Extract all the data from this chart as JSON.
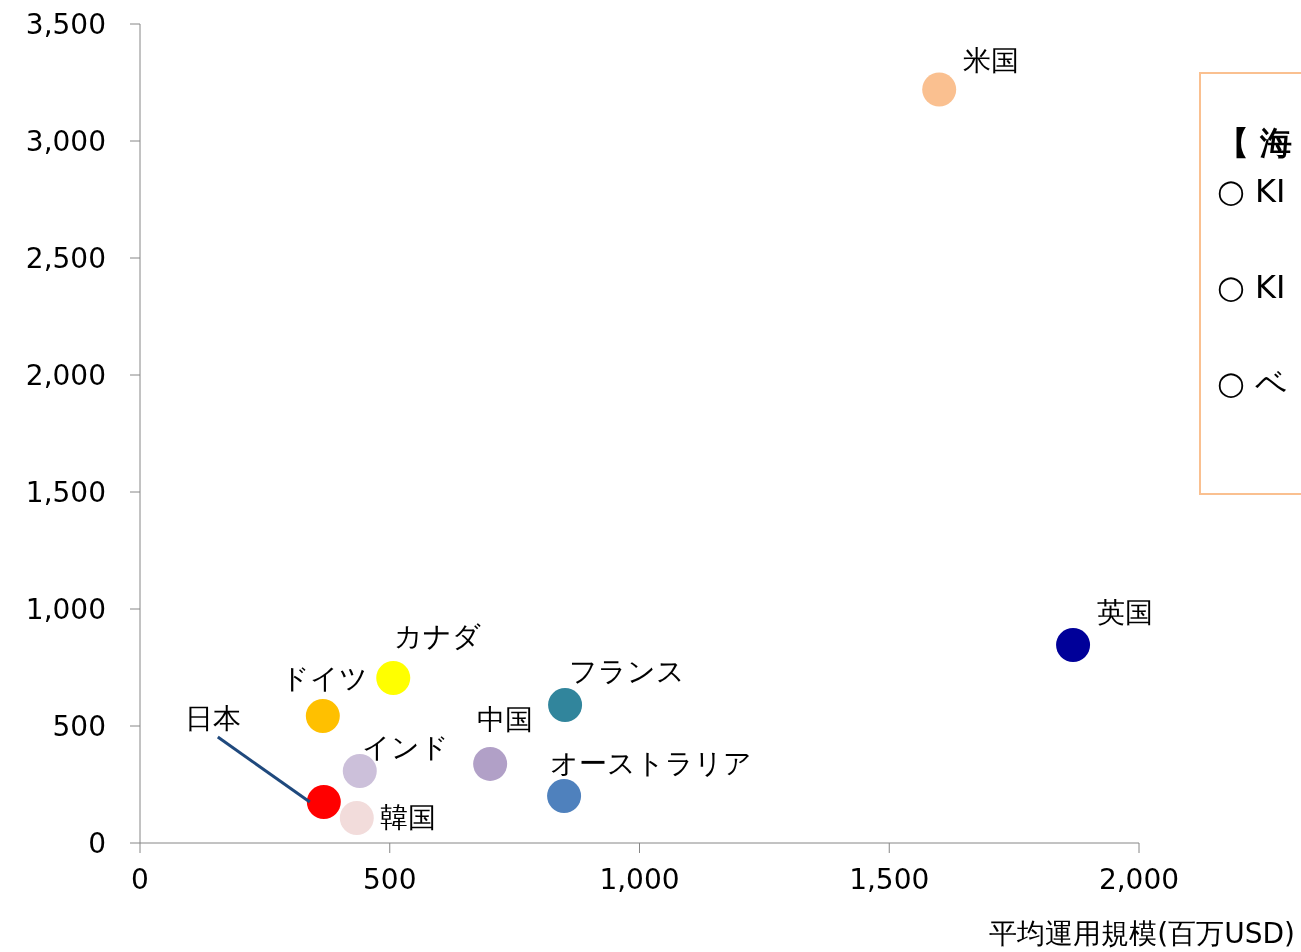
{
  "chart_data": {
    "type": "scatter",
    "xlabel": "平均運用規模(百万USD)",
    "marker": "circle",
    "xlim": [
      0,
      2000
    ],
    "xticks": [
      {
        "value": 0,
        "label": "0"
      },
      {
        "value": 500,
        "label": "500"
      },
      {
        "value": 1000,
        "label": "1,000"
      },
      {
        "value": 1500,
        "label": "1,500"
      },
      {
        "value": 2000,
        "label": "2,000"
      }
    ],
    "ylim": [
      0,
      3500
    ],
    "yticks": [
      {
        "value": 0,
        "label": "0"
      },
      {
        "value": 500,
        "label": "500"
      },
      {
        "value": 1000,
        "label": "1,000"
      },
      {
        "value": 1500,
        "label": "1,500"
      },
      {
        "value": 2000,
        "label": "2,000"
      },
      {
        "value": 2500,
        "label": "2,500"
      },
      {
        "value": 3000,
        "label": "3,000"
      },
      {
        "value": 3500,
        "label": "3,500"
      }
    ],
    "series": [
      {
        "name": "米国",
        "color": "#fac090",
        "x": [
          1600
        ],
        "values": [
          3220
        ]
      },
      {
        "name": "英国",
        "color": "#000099",
        "x": [
          1868
        ],
        "values": [
          846
        ]
      },
      {
        "name": "フランス",
        "color": "#31859c",
        "x": [
          851
        ],
        "values": [
          590
        ]
      },
      {
        "name": "オーストラリア",
        "color": "#4f81bd",
        "x": [
          849
        ],
        "values": [
          201
        ]
      },
      {
        "name": "中国",
        "color": "#b1a0c7",
        "x": [
          701
        ],
        "values": [
          338
        ]
      },
      {
        "name": "カナダ",
        "color": "#ffff00",
        "x": [
          507
        ],
        "values": [
          705
        ]
      },
      {
        "name": "ドイツ",
        "color": "#ffc000",
        "x": [
          366
        ],
        "values": [
          543
        ]
      },
      {
        "name": "インド",
        "color": "#ccc0da",
        "x": [
          440
        ],
        "values": [
          308
        ]
      },
      {
        "name": "日本",
        "color": "#ff0000",
        "x": [
          368
        ],
        "values": [
          175
        ]
      },
      {
        "name": "韓国",
        "color": "#f2dcdb",
        "x": [
          434
        ],
        "values": [
          107
        ]
      }
    ],
    "annotations": [
      "【 海",
      "○ KI",
      "○ KI",
      "○ ベ"
    ]
  }
}
